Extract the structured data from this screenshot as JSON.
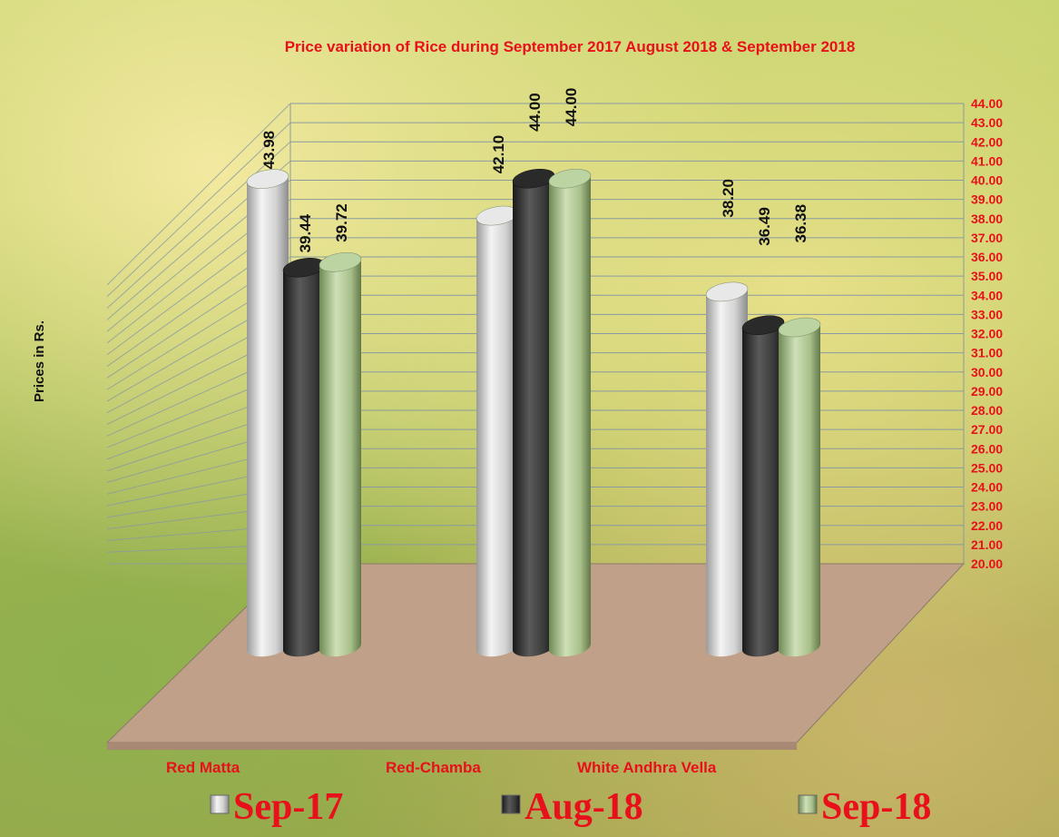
{
  "chart_data": {
    "type": "bar",
    "title": "Price variation of Rice during  September  2017  August  2018 &  September 2018",
    "ylabel": "Prices in Rs.",
    "xlabel": "",
    "categories": [
      "Red Matta",
      "Red-Chamba",
      "White Andhra Vella"
    ],
    "series": [
      {
        "name": "Sep-17",
        "values": [
          43.98,
          42.1,
          38.2
        ],
        "color": "#d8d8d8"
      },
      {
        "name": "Aug-18",
        "values": [
          39.44,
          44.0,
          36.49
        ],
        "color": "#3a3a3a"
      },
      {
        "name": "Sep-18",
        "values": [
          39.72,
          44.0,
          36.38
        ],
        "color": "#a8c08a"
      }
    ],
    "data_labels": [
      [
        "43.98",
        "39.44",
        "39.72"
      ],
      [
        "42.10",
        "44.00",
        "44.00"
      ],
      [
        "38.20",
        "36.49",
        "36.38"
      ]
    ],
    "ylim": [
      20,
      44
    ],
    "yticks": [
      "20.00",
      "21.00",
      "22.00",
      "23.00",
      "24.00",
      "25.00",
      "26.00",
      "27.00",
      "28.00",
      "29.00",
      "30.00",
      "31.00",
      "32.00",
      "33.00",
      "34.00",
      "35.00",
      "36.00",
      "37.00",
      "38.00",
      "39.00",
      "40.00",
      "41.00",
      "42.00",
      "43.00",
      "44.00"
    ],
    "grid": true,
    "legend_position": "bottom",
    "colors": {
      "text_accent": "#e8101a",
      "floor": "#c0a088",
      "gridline": "#8a9aa0"
    }
  }
}
